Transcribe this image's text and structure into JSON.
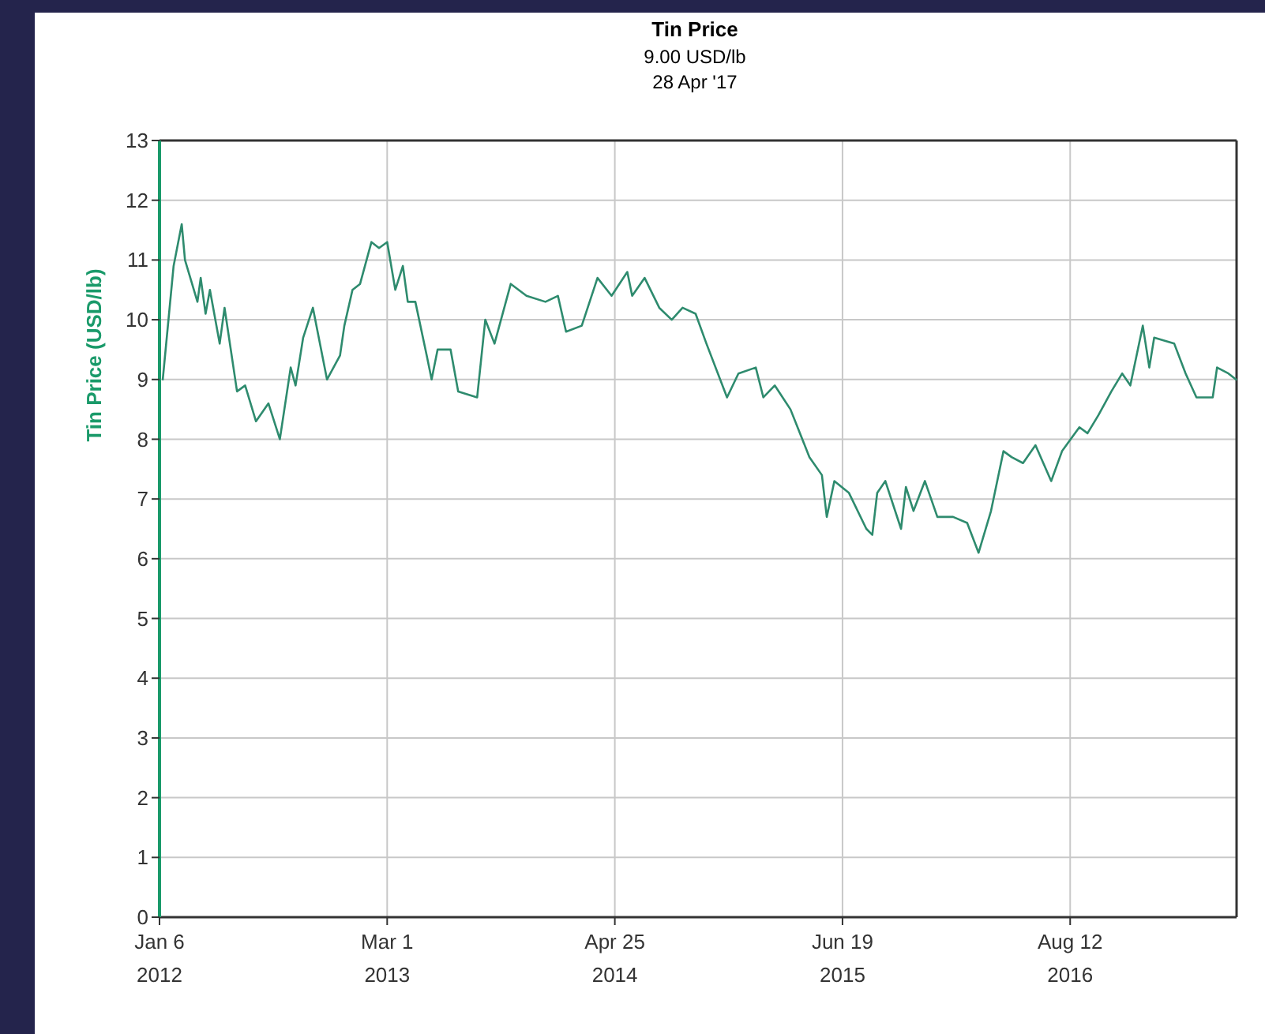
{
  "chart_data": {
    "type": "line",
    "title": "Tin Price",
    "subtitle": "9.00 USD/lb\n28 Apr '17",
    "ylabel": "Tin Price (USD/lb)",
    "x": [
      "2012-01-12",
      "2012-02-01",
      "2012-02-16",
      "2012-02-22",
      "2012-03-16",
      "2012-03-22",
      "2012-03-31",
      "2012-04-08",
      "2012-04-26",
      "2012-05-05",
      "2012-05-28",
      "2012-06-12",
      "2012-07-02",
      "2012-07-25",
      "2012-08-15",
      "2012-09-04",
      "2012-09-13",
      "2012-09-27",
      "2012-10-15",
      "2012-11-10",
      "2012-12-04",
      "2012-12-12",
      "2012-12-27",
      "2013-01-10",
      "2013-01-31",
      "2013-02-14",
      "2013-03-01",
      "2013-03-16",
      "2013-03-30",
      "2013-04-08",
      "2013-04-22",
      "2013-05-13",
      "2013-05-22",
      "2013-06-02",
      "2013-06-26",
      "2013-07-10",
      "2013-08-14",
      "2013-08-29",
      "2013-09-15",
      "2013-10-15",
      "2013-11-13",
      "2013-12-18",
      "2014-01-10",
      "2014-01-25",
      "2014-02-23",
      "2014-03-24",
      "2014-04-19",
      "2014-05-18",
      "2014-05-27",
      "2014-06-19",
      "2014-07-16",
      "2014-08-08",
      "2014-08-28",
      "2014-09-21",
      "2014-10-11",
      "2014-11-18",
      "2014-12-09",
      "2015-01-10",
      "2015-01-24",
      "2015-02-14",
      "2015-03-15",
      "2015-04-19",
      "2015-05-12",
      "2015-05-21",
      "2015-06-04",
      "2015-07-01",
      "2015-08-02",
      "2015-08-13",
      "2015-08-22",
      "2015-09-06",
      "2015-10-05",
      "2015-10-14",
      "2015-10-28",
      "2015-11-18",
      "2015-12-11",
      "2016-01-09",
      "2016-02-04",
      "2016-02-25",
      "2016-03-19",
      "2016-04-11",
      "2016-04-26",
      "2016-05-17",
      "2016-06-09",
      "2016-07-08",
      "2016-07-28",
      "2016-08-29",
      "2016-09-13",
      "2016-10-03",
      "2016-10-27",
      "2016-11-16",
      "2016-12-01",
      "2016-12-24",
      "2017-01-05",
      "2017-01-14",
      "2017-02-20",
      "2017-03-13",
      "2017-04-02",
      "2017-05-02",
      "2017-05-10",
      "2017-05-31",
      "2017-06-14"
    ],
    "series": [
      {
        "color": "#2e8b6e",
        "values": [
          9.0,
          10.9,
          11.6,
          11.0,
          10.3,
          10.7,
          10.1,
          10.5,
          9.6,
          10.2,
          8.8,
          8.9,
          8.3,
          8.6,
          8.0,
          9.2,
          8.9,
          9.7,
          10.2,
          9.0,
          9.4,
          9.9,
          10.5,
          10.6,
          11.3,
          11.2,
          11.3,
          10.5,
          10.9,
          10.3,
          10.3,
          9.4,
          9.0,
          9.5,
          9.5,
          8.8,
          8.7,
          10.0,
          9.6,
          10.6,
          10.4,
          10.3,
          10.4,
          9.8,
          9.9,
          10.7,
          10.4,
          10.8,
          10.4,
          10.7,
          10.2,
          10.0,
          10.2,
          10.1,
          9.6,
          8.7,
          9.1,
          9.2,
          8.7,
          8.9,
          8.5,
          7.7,
          7.4,
          6.7,
          7.3,
          7.1,
          6.5,
          6.4,
          7.1,
          7.3,
          6.5,
          7.2,
          6.8,
          7.3,
          6.7,
          6.7,
          6.6,
          6.1,
          6.8,
          7.8,
          7.7,
          7.6,
          7.9,
          7.3,
          7.8,
          8.2,
          8.1,
          8.4,
          8.8,
          9.1,
          8.9,
          9.9,
          9.2,
          9.7,
          9.6,
          9.1,
          8.7,
          8.7,
          9.2,
          9.1,
          9.0
        ]
      }
    ],
    "xlim": [
      "2012-01-06",
      "2017-06-15"
    ],
    "xticks": [
      {
        "value": "2012-01-06",
        "label": "Jan 6\n2012"
      },
      {
        "value": "2013-03-01",
        "label": "Mar 1\n2013"
      },
      {
        "value": "2014-04-25",
        "label": "Apr 25\n2014"
      },
      {
        "value": "2015-06-19",
        "label": "Jun 19\n2015"
      },
      {
        "value": "2016-08-12",
        "label": "Aug 12\n2016"
      }
    ],
    "ylim": [
      0,
      13
    ],
    "yticks": [
      0,
      1,
      2,
      3,
      4,
      5,
      6,
      7,
      8,
      9,
      10,
      11,
      12,
      13
    ],
    "grid": true,
    "marker": "none",
    "line_style": "solid"
  }
}
